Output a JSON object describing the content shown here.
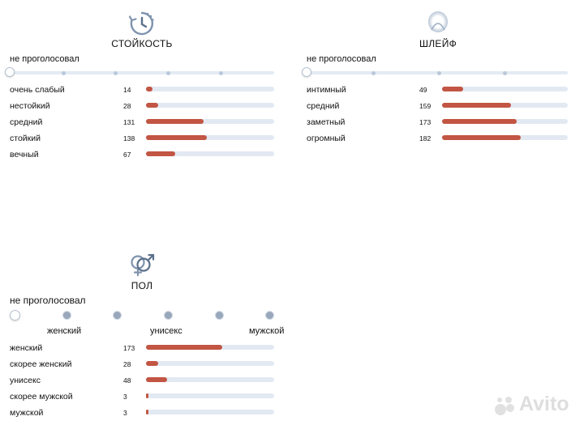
{
  "colors": {
    "accent": "#c25543",
    "track": "#e2e9f2",
    "icon": "#7f93ad"
  },
  "longevity": {
    "title": "СТОЙКОСТЬ",
    "icon": "clock-icon",
    "not_voted": "не проголосовал",
    "max": 182,
    "items": [
      {
        "label": "очень слабый",
        "count": 14
      },
      {
        "label": "нестойкий",
        "count": 28
      },
      {
        "label": "средний",
        "count": 131
      },
      {
        "label": "стойкий",
        "count": 138
      },
      {
        "label": "вечный",
        "count": 67
      }
    ]
  },
  "sillage": {
    "title": "ШЛЕЙФ",
    "icon": "sillage-icon",
    "not_voted": "не проголосовал",
    "max": 182,
    "items": [
      {
        "label": "интимный",
        "count": 49
      },
      {
        "label": "средний",
        "count": 159
      },
      {
        "label": "заметный",
        "count": 173
      },
      {
        "label": "огромный",
        "count": 182
      }
    ]
  },
  "gender": {
    "title": "ПОЛ",
    "icon": "gender-icon",
    "not_voted": "не проголосовал",
    "scale": {
      "left": "женский",
      "center": "унисекс",
      "right": "мужской"
    },
    "max": 182,
    "items": [
      {
        "label": "женский",
        "count": 173
      },
      {
        "label": "скорее женский",
        "count": 28
      },
      {
        "label": "унисекс",
        "count": 48
      },
      {
        "label": "скорее мужской",
        "count": 3
      },
      {
        "label": "мужской",
        "count": 3
      }
    ]
  },
  "watermark": {
    "text": "Avito",
    "icon": "avito-logo-icon"
  }
}
